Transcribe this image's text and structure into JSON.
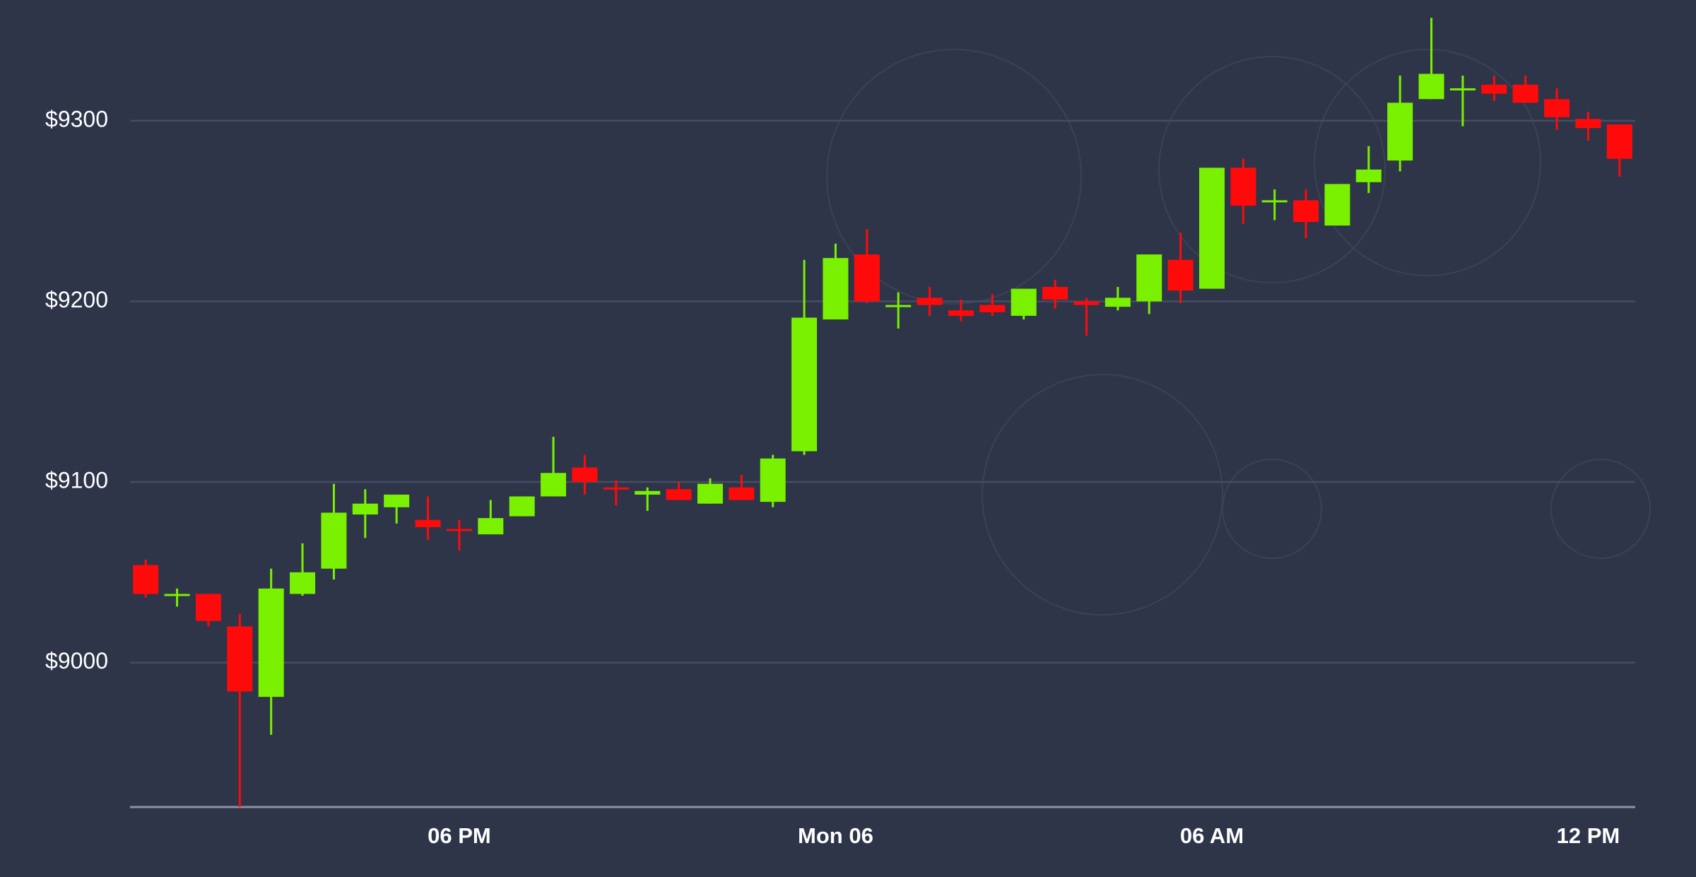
{
  "chart_data": {
    "type": "candlestick",
    "categories": [
      null,
      null,
      null,
      null,
      null,
      null,
      null,
      null,
      null,
      null,
      "06 PM",
      null,
      null,
      null,
      null,
      null,
      null,
      null,
      null,
      null,
      null,
      null,
      "Mon 06",
      null,
      null,
      null,
      null,
      null,
      null,
      null,
      null,
      null,
      null,
      null,
      "06 AM",
      null,
      null,
      null,
      null,
      null,
      null,
      null,
      null,
      null,
      null,
      null,
      "12 PM",
      null
    ],
    "open": [
      9054,
      9037,
      9038,
      9020,
      8981,
      9038,
      9052,
      9082,
      9086,
      9079,
      9074,
      9071,
      9081,
      9092,
      9108,
      9097,
      9093,
      9096,
      9088,
      9097,
      9089,
      9117,
      9190,
      9226,
      9197,
      9202,
      9195,
      9198,
      9192,
      9208,
      9200,
      9197,
      9200,
      9223,
      9207,
      9274,
      9255,
      9256,
      9242,
      9266,
      9278,
      9312,
      9317,
      9320,
      9320,
      9312,
      9301,
      9298
    ],
    "high": [
      9057,
      9041,
      9038,
      9027,
      9052,
      9066,
      9099,
      9096,
      9093,
      9092,
      9079,
      9090,
      9092,
      9125,
      9115,
      9101,
      9097,
      9100,
      9102,
      9104,
      9115,
      9223,
      9232,
      9240,
      9205,
      9208,
      9201,
      9204,
      9207,
      9212,
      9202,
      9208,
      9226,
      9238,
      9274,
      9279,
      9262,
      9262,
      9265,
      9286,
      9325,
      9357,
      9325,
      9325,
      9325,
      9318,
      9305,
      9298
    ],
    "low": [
      9036,
      9031,
      9020,
      8920,
      8960,
      9037,
      9046,
      9069,
      9077,
      9068,
      9062,
      9071,
      9081,
      9092,
      9093,
      9087,
      9084,
      9090,
      9088,
      9090,
      9086,
      9115,
      9190,
      9199,
      9185,
      9192,
      9189,
      9192,
      9190,
      9196,
      9181,
      9195,
      9193,
      9199,
      9207,
      9243,
      9245,
      9235,
      9242,
      9260,
      9272,
      9312,
      9297,
      9311,
      9310,
      9295,
      9289,
      9269
    ],
    "close": [
      9038,
      9038,
      9023,
      8984,
      9041,
      9050,
      9083,
      9088,
      9093,
      9075,
      9073,
      9080,
      9092,
      9105,
      9100,
      9096,
      9095,
      9090,
      9099,
      9090,
      9113,
      9191,
      9224,
      9200,
      9198,
      9198,
      9192,
      9194,
      9207,
      9201,
      9198,
      9202,
      9226,
      9206,
      9274,
      9253,
      9256,
      9244,
      9265,
      9273,
      9310,
      9326,
      9318,
      9315,
      9310,
      9302,
      9296,
      9279
    ],
    "up_color": "#79f100",
    "down_color": "#ff0a0a",
    "ylim": [
      8920,
      9360
    ],
    "yticks": [
      {
        "value": 9000,
        "label": "$9000"
      },
      {
        "value": 9100,
        "label": "$9100"
      },
      {
        "value": 9200,
        "label": "$9200"
      },
      {
        "value": 9300,
        "label": "$9300"
      }
    ],
    "grid": true
  }
}
